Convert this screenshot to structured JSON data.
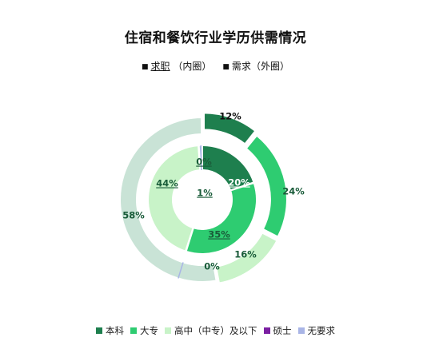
{
  "title": "住宿和餐饮行业学历供需情况",
  "subtitle": {
    "inner_symbol": "■",
    "inner_name": "求职",
    "inner_note": "（内圈）",
    "outer_symbol": "■",
    "outer_name": "需求",
    "outer_note": "（外圈）"
  },
  "chart_data": {
    "type": "pie",
    "subtype": "nested-donut",
    "categories": [
      "本科",
      "大专",
      "高中（中专）及以下",
      "硕士",
      "无要求"
    ],
    "colors": [
      "#1e7f4e",
      "#2ecc71",
      "#c8f3c8",
      "#7b1fa2",
      "#a9b5e6"
    ],
    "series": [
      {
        "name": "求职",
        "ring": "inner",
        "values": [
          20,
          35,
          44,
          0,
          1
        ],
        "labels": [
          "20%",
          "35%",
          "44%",
          "0%",
          "1%"
        ]
      },
      {
        "name": "需求",
        "ring": "outer",
        "values": [
          12,
          24,
          16,
          0,
          58
        ],
        "labels": [
          "12%",
          "24%",
          "16%",
          "0%",
          "58%"
        ]
      }
    ],
    "legend_position": "bottom"
  }
}
